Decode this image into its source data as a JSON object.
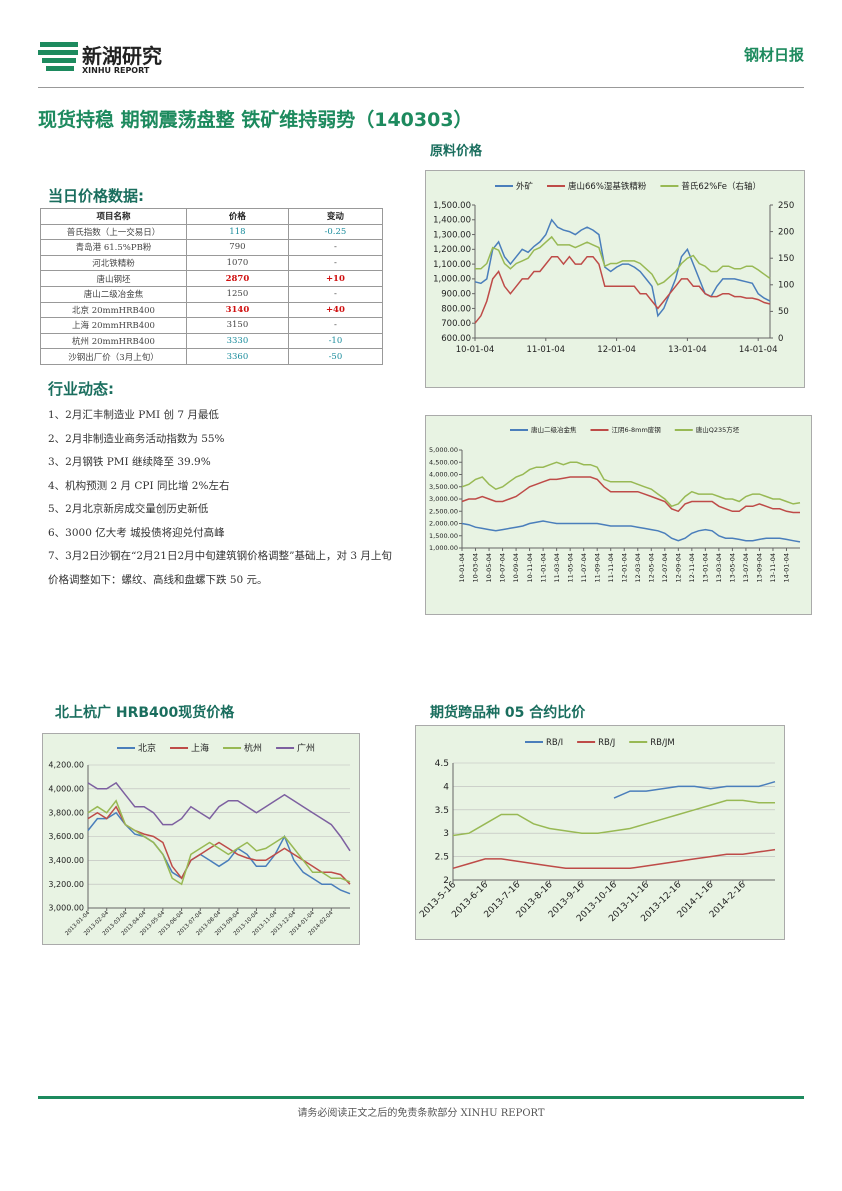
{
  "header": {
    "logo_cn": "新湖研究",
    "logo_en": "XINHU REPORT",
    "report_type": "钢材日报"
  },
  "title": "现货持稳 期钢震荡盘整 铁矿维持弱势（140303）",
  "sections": {
    "prices": "当日价格数据:",
    "raw": "原料价格",
    "news": "行业动态:",
    "spot": "北上杭广 HRB400现货价格",
    "futures": "期货跨品种 05 合约比价"
  },
  "table": {
    "headers": [
      "项目名称",
      "价格",
      "变动"
    ],
    "rows": [
      [
        "普氏指数（上一交易日）",
        "118",
        "-0.25"
      ],
      [
        "青岛港 61.5%PB粉",
        "790",
        "-"
      ],
      [
        "河北铁精粉",
        "1070",
        "-"
      ],
      [
        "唐山钢坯",
        "2870",
        "+10"
      ],
      [
        "唐山二级冶金焦",
        "1250",
        "-"
      ],
      [
        "北京 20mmHRB400",
        "3140",
        "+40"
      ],
      [
        "上海 20mmHRB400",
        "3150",
        "-"
      ],
      [
        "杭州 20mmHRB400",
        "3330",
        "-10"
      ],
      [
        "沙钢出厂价（3月上旬）",
        "3360",
        "-50"
      ]
    ]
  },
  "news": [
    "1、2月汇丰制造业 PMI 创 7 月最低",
    "2、2月非制造业商务活动指数为 55%",
    "3、2月钢铁 PMI 继续降至 39.9%",
    "4、机构预测 2 月 CPI 同比增 2%左右",
    "5、2月北京新房成交量创历史新低",
    "6、3000 亿大考 城投债将迎兑付高峰",
    "7、3月2日沙钢在“2月21日2月中旬建筑钢价格调整”基础上，对 3 月上旬价格调整如下：螺纹、高线和盘螺下跌 50 元。"
  ],
  "chart_data": [
    {
      "type": "line",
      "grid": false,
      "categories": [
        "10-01-04",
        null,
        null,
        null,
        null,
        null,
        null,
        null,
        null,
        null,
        null,
        null,
        "11-01-04",
        null,
        null,
        null,
        null,
        null,
        null,
        null,
        null,
        null,
        null,
        null,
        "12-01-04",
        null,
        null,
        null,
        null,
        null,
        null,
        null,
        null,
        null,
        null,
        null,
        "13-01-04",
        null,
        null,
        null,
        null,
        null,
        null,
        null,
        null,
        null,
        null,
        null,
        "14-01-04",
        null,
        null
      ],
      "ylim": [
        600,
        1500
      ],
      "yticks": [
        {
          "value": 600,
          "label": "600.00"
        },
        {
          "value": 700,
          "label": "700.00"
        },
        {
          "value": 800,
          "label": "800.00"
        },
        {
          "value": 900,
          "label": "900.00"
        },
        {
          "value": 1000,
          "label": "1,000.00"
        },
        {
          "value": 1100,
          "label": "1,100.00"
        },
        {
          "value": 1200,
          "label": "1,200.00"
        },
        {
          "value": 1300,
          "label": "1,300.00"
        },
        {
          "value": 1400,
          "label": "1,400.00"
        },
        {
          "value": 1500,
          "label": "1,500.00"
        }
      ],
      "y2lim": [
        0,
        250
      ],
      "y2ticks": [
        0,
        50,
        100,
        150,
        200,
        250
      ],
      "series": [
        {
          "name": "外矿",
          "color": "#4a7ebb",
          "values": [
            980,
            970,
            1000,
            1200,
            1250,
            1150,
            1100,
            1150,
            1200,
            1180,
            1220,
            1250,
            1300,
            1400,
            1350,
            1330,
            1320,
            1300,
            1330,
            1350,
            1330,
            1300,
            1080,
            1050,
            1080,
            1100,
            1100,
            1080,
            1050,
            1000,
            950,
            750,
            800,
            900,
            1000,
            1150,
            1200,
            1100,
            1000,
            900,
            880,
            950,
            1000,
            1000,
            1000,
            990,
            980,
            970,
            900,
            870,
            850
          ]
        },
        {
          "name": "唐山66%湿基铁精粉",
          "color": "#be4b48",
          "values": [
            700,
            750,
            850,
            1000,
            1050,
            950,
            900,
            950,
            1000,
            1000,
            1050,
            1050,
            1100,
            1150,
            1150,
            1100,
            1150,
            1100,
            1100,
            1150,
            1150,
            1100,
            950,
            950,
            950,
            950,
            950,
            950,
            900,
            900,
            850,
            800,
            850,
            900,
            950,
            1000,
            1000,
            950,
            950,
            900,
            880,
            880,
            900,
            900,
            880,
            880,
            870,
            870,
            860,
            840,
            830
          ]
        },
        {
          "name": "普氏62%Fe（右轴）",
          "color": "#98b954",
          "axis": "y2",
          "values": [
            130,
            130,
            140,
            170,
            165,
            140,
            130,
            140,
            145,
            150,
            165,
            170,
            180,
            190,
            175,
            175,
            175,
            170,
            175,
            180,
            175,
            170,
            135,
            140,
            140,
            145,
            145,
            145,
            140,
            130,
            120,
            100,
            105,
            115,
            125,
            140,
            150,
            155,
            140,
            135,
            125,
            125,
            135,
            135,
            130,
            130,
            135,
            135,
            128,
            120,
            112
          ]
        }
      ]
    },
    {
      "type": "line",
      "grid": false,
      "categories": [
        "10-01-04",
        null,
        "10-03-04",
        null,
        "10-05-04",
        null,
        "10-07-04",
        null,
        "10-09-04",
        null,
        "10-11-04",
        null,
        "11-01-04",
        null,
        "11-03-04",
        null,
        "11-05-04",
        null,
        "11-07-04",
        null,
        "11-09-04",
        null,
        "11-11-04",
        null,
        "12-01-04",
        null,
        "12-03-04",
        null,
        "12-05-04",
        null,
        "12-07-04",
        null,
        "12-09-04",
        null,
        "12-11-04",
        null,
        "13-01-04",
        null,
        "13-03-04",
        null,
        "13-05-04",
        null,
        "13-07-04",
        null,
        "13-09-04",
        null,
        "13-11-04",
        null,
        "14-01-04",
        null,
        null
      ],
      "ylim": [
        1000,
        5000
      ],
      "yticks": [
        {
          "value": 1000,
          "label": "1,000.00"
        },
        {
          "value": 1500,
          "label": "1,500.00"
        },
        {
          "value": 2000,
          "label": "2,000.00"
        },
        {
          "value": 2500,
          "label": "2,500.00"
        },
        {
          "value": 3000,
          "label": "3,000.00"
        },
        {
          "value": 3500,
          "label": "3,500.00"
        },
        {
          "value": 4000,
          "label": "4,000.00"
        },
        {
          "value": 4500,
          "label": "4,500.00"
        },
        {
          "value": 5000,
          "label": "5,000.00"
        }
      ],
      "series": [
        {
          "name": "唐山二级冶金焦",
          "color": "#4a7ebb",
          "values": [
            2000,
            1950,
            1850,
            1800,
            1750,
            1700,
            1750,
            1800,
            1850,
            1900,
            2000,
            2050,
            2100,
            2050,
            2000,
            2000,
            2000,
            2000,
            2000,
            2000,
            2000,
            1950,
            1900,
            1900,
            1900,
            1900,
            1850,
            1800,
            1750,
            1700,
            1600,
            1400,
            1300,
            1400,
            1600,
            1700,
            1750,
            1700,
            1500,
            1400,
            1400,
            1350,
            1300,
            1300,
            1350,
            1400,
            1400,
            1400,
            1350,
            1300,
            1250
          ]
        },
        {
          "name": "江阴6-8mm废钢",
          "color": "#be4b48",
          "values": [
            2900,
            3000,
            3000,
            3100,
            3000,
            2900,
            2900,
            3000,
            3100,
            3300,
            3500,
            3600,
            3700,
            3800,
            3800,
            3850,
            3900,
            3900,
            3900,
            3900,
            3800,
            3500,
            3300,
            3300,
            3300,
            3300,
            3300,
            3200,
            3100,
            3000,
            2900,
            2600,
            2500,
            2800,
            2900,
            2900,
            2900,
            2900,
            2700,
            2600,
            2500,
            2500,
            2700,
            2700,
            2800,
            2700,
            2600,
            2600,
            2500,
            2450,
            2450
          ]
        },
        {
          "name": "唐山Q235方坯",
          "color": "#98b954",
          "values": [
            3500,
            3600,
            3800,
            3900,
            3600,
            3400,
            3500,
            3700,
            3900,
            4000,
            4200,
            4300,
            4300,
            4400,
            4500,
            4400,
            4500,
            4500,
            4400,
            4400,
            4300,
            3800,
            3700,
            3700,
            3700,
            3700,
            3600,
            3500,
            3400,
            3200,
            3000,
            2700,
            2800,
            3100,
            3300,
            3200,
            3200,
            3200,
            3100,
            3000,
            3000,
            2900,
            3100,
            3200,
            3200,
            3100,
            3000,
            3000,
            2900,
            2800,
            2850
          ]
        }
      ]
    },
    {
      "type": "line",
      "grid": true,
      "categories": [
        "2013-01-04",
        null,
        "2013-02-04",
        null,
        "2013-03-04",
        null,
        "2013-04-04",
        null,
        "2013-05-04",
        null,
        "2013-06-04",
        null,
        "2013-07-04",
        null,
        "2013-08-04",
        null,
        "2013-09-04",
        null,
        "2013-10-04",
        null,
        "2013-11-04",
        null,
        "2013-12-04",
        null,
        "2014-01-04",
        null,
        "2014-02-04",
        null,
        null
      ],
      "ylim": [
        3000,
        4200
      ],
      "yticks": [
        {
          "value": 3000,
          "label": "3,000.00"
        },
        {
          "value": 3200,
          "label": "3,200.00"
        },
        {
          "value": 3400,
          "label": "3,400.00"
        },
        {
          "value": 3600,
          "label": "3,600.00"
        },
        {
          "value": 3800,
          "label": "3,800.00"
        },
        {
          "value": 4000,
          "label": "4,000.00"
        },
        {
          "value": 4200,
          "label": "4,200.00"
        }
      ],
      "series": [
        {
          "name": "北京",
          "color": "#4a7ebb",
          "values": [
            3650,
            3750,
            3750,
            3800,
            3700,
            3620,
            3600,
            3550,
            3450,
            3300,
            3250,
            3400,
            3450,
            3400,
            3350,
            3400,
            3500,
            3450,
            3350,
            3350,
            3450,
            3600,
            3400,
            3300,
            3250,
            3200,
            3200,
            3150,
            3120
          ]
        },
        {
          "name": "上海",
          "color": "#be4b48",
          "values": [
            3750,
            3800,
            3750,
            3850,
            3700,
            3650,
            3620,
            3600,
            3550,
            3350,
            3250,
            3400,
            3450,
            3500,
            3550,
            3500,
            3450,
            3420,
            3400,
            3400,
            3450,
            3500,
            3450,
            3400,
            3350,
            3300,
            3300,
            3280,
            3200
          ]
        },
        {
          "name": "杭州",
          "color": "#98b954",
          "values": [
            3800,
            3850,
            3800,
            3900,
            3700,
            3650,
            3600,
            3550,
            3450,
            3250,
            3200,
            3450,
            3500,
            3550,
            3500,
            3450,
            3500,
            3550,
            3480,
            3500,
            3550,
            3600,
            3500,
            3400,
            3300,
            3300,
            3250,
            3250,
            3220
          ]
        },
        {
          "name": "广州",
          "color": "#7d60a0",
          "values": [
            4050,
            4000,
            4000,
            4050,
            3950,
            3850,
            3850,
            3800,
            3700,
            3700,
            3750,
            3850,
            3800,
            3750,
            3850,
            3900,
            3900,
            3850,
            3800,
            3850,
            3900,
            3950,
            3900,
            3850,
            3800,
            3750,
            3700,
            3600,
            3480
          ]
        }
      ]
    },
    {
      "type": "line",
      "grid": true,
      "categories": [
        "2013-5-16",
        null,
        "2013-6-16",
        null,
        "2013-7-16",
        null,
        "2013-8-16",
        null,
        "2013-9-16",
        null,
        "2013-10-16",
        null,
        "2013-11-16",
        null,
        "2013-12-16",
        null,
        "2014-1-16",
        null,
        "2014-2-16",
        null,
        null
      ],
      "ylim": [
        2,
        4.5
      ],
      "yticks": [
        2,
        2.5,
        3,
        3.5,
        4,
        4.5
      ],
      "series": [
        {
          "name": "RB/I",
          "color": "#4a7ebb",
          "values": [
            null,
            null,
            null,
            null,
            null,
            null,
            null,
            null,
            null,
            null,
            3.75,
            3.9,
            3.9,
            3.95,
            4.0,
            4.0,
            3.95,
            4.0,
            4.0,
            4.0,
            4.1
          ]
        },
        {
          "name": "RB/J",
          "color": "#be4b48",
          "values": [
            2.25,
            2.35,
            2.45,
            2.45,
            2.4,
            2.35,
            2.3,
            2.25,
            2.25,
            2.25,
            2.25,
            2.25,
            2.3,
            2.35,
            2.4,
            2.45,
            2.5,
            2.55,
            2.55,
            2.6,
            2.65
          ]
        },
        {
          "name": "RB/JM",
          "color": "#98b954",
          "values": [
            2.95,
            3.0,
            3.2,
            3.4,
            3.4,
            3.2,
            3.1,
            3.05,
            3.0,
            3.0,
            3.05,
            3.1,
            3.2,
            3.3,
            3.4,
            3.5,
            3.6,
            3.7,
            3.7,
            3.65,
            3.65
          ]
        }
      ]
    }
  ],
  "footer": "请务必阅读正文之后的免责条款部分 XINHU REPORT"
}
